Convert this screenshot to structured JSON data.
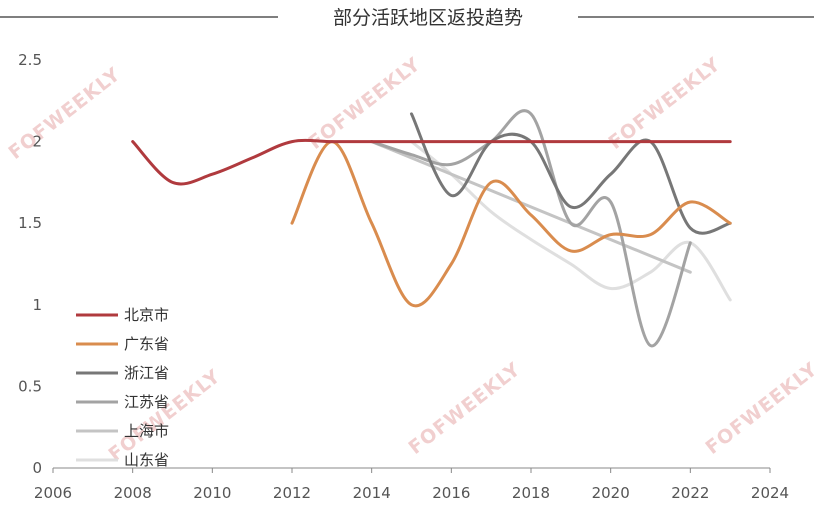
{
  "chart_data": {
    "type": "line",
    "title": "部分活跃地区返投趋势",
    "xlabel": "",
    "ylabel": "",
    "xlim": [
      2006,
      2024
    ],
    "ylim": [
      0,
      2.5
    ],
    "x_ticks": [
      "2006",
      "2008",
      "2010",
      "2012",
      "2014",
      "2016",
      "2018",
      "2020",
      "2022",
      "2024"
    ],
    "y_ticks": [
      "0",
      "0.5",
      "1",
      "1.5",
      "2",
      "2.5"
    ],
    "grid": false,
    "legend": "bottom-left",
    "smooth": true,
    "series": [
      {
        "name": "北京市",
        "color": "#b03a3e",
        "x": [
          2008,
          2009,
          2010,
          2011,
          2012,
          2013,
          2014,
          2015,
          2016,
          2017,
          2018,
          2019,
          2020,
          2021,
          2022,
          2023
        ],
        "values": [
          2.0,
          1.75,
          1.8,
          1.9,
          2.0,
          2.0,
          2.0,
          2.0,
          2.0,
          2.0,
          2.0,
          2.0,
          2.0,
          2.0,
          2.0,
          2.0
        ]
      },
      {
        "name": "广东省",
        "color": "#d98c4e",
        "x": [
          2012,
          2013,
          2014,
          2015,
          2016,
          2017,
          2018,
          2019,
          2020,
          2021,
          2022,
          2023
        ],
        "values": [
          1.5,
          2.0,
          1.5,
          1.0,
          1.25,
          1.75,
          1.55,
          1.33,
          1.43,
          1.43,
          1.63,
          1.5
        ]
      },
      {
        "name": "浙江省",
        "color": "#777777",
        "x": [
          2015,
          2016,
          2017,
          2018,
          2019,
          2020,
          2021,
          2022,
          2023
        ],
        "values": [
          2.17,
          1.67,
          2.0,
          2.0,
          1.6,
          1.8,
          2.0,
          1.47,
          1.5
        ]
      },
      {
        "name": "江苏省",
        "color": "#a3a3a3",
        "x": [
          2014,
          2015,
          2016,
          2017,
          2018,
          2019,
          2020,
          2021,
          2022
        ],
        "values": [
          2.0,
          1.92,
          1.86,
          2.0,
          2.17,
          1.5,
          1.63,
          0.75,
          1.38
        ]
      },
      {
        "name": "上海市",
        "color": "#c4c4c4",
        "x": [
          2014,
          2022
        ],
        "values": [
          2.0,
          1.2
        ]
      },
      {
        "name": "山东省",
        "color": "#dfdfdf",
        "x": [
          2015,
          2016,
          2017,
          2018,
          2019,
          2020,
          2021,
          2022,
          2023
        ],
        "values": [
          2.0,
          1.8,
          1.57,
          1.4,
          1.25,
          1.1,
          1.2,
          1.38,
          1.03
        ]
      }
    ]
  },
  "watermark": "FOFWEEKLY"
}
